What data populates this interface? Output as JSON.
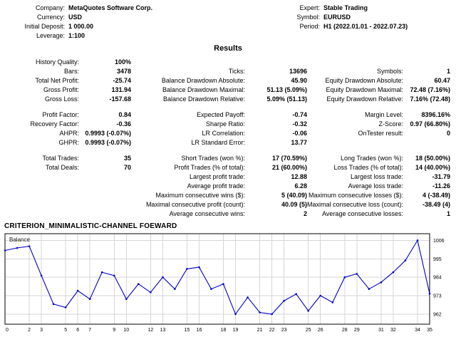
{
  "header": {
    "left": [
      {
        "label": "Company:",
        "value": "MetaQuotes Software Corp."
      },
      {
        "label": "Currency:",
        "value": "USD"
      },
      {
        "label": "Initial Deposit:",
        "value": "1 000.00"
      },
      {
        "label": "Leverage:",
        "value": "1:100"
      }
    ],
    "right": [
      {
        "label": "Expert:",
        "value": "Stable Trading"
      },
      {
        "label": "Symbol:",
        "value": "EURUSD"
      },
      {
        "label": "Period:",
        "value": "H1 (2022.01.01 - 2022.07.23)"
      }
    ]
  },
  "results_title": "Results",
  "stats": {
    "rows": [
      {
        "l1": "History Quality:",
        "v1": "100%",
        "l2": "",
        "v2": "",
        "l3": "",
        "v3": ""
      },
      {
        "l1": "Bars:",
        "v1": "3478",
        "l2": "Ticks:",
        "v2": "13696",
        "l3": "Symbols:",
        "v3": "1"
      },
      {
        "l1": "Total Net Profit:",
        "v1": "-25.74",
        "l2": "Balance Drawdown Absolute:",
        "v2": "45.90",
        "l3": "Equity Drawdown Absolute:",
        "v3": "60.47"
      },
      {
        "l1": "Gross Profit:",
        "v1": "131.94",
        "l2": "Balance Drawdown Maximal:",
        "v2": "51.13 (5.09%)",
        "l3": "Equity Drawdown Maximal:",
        "v3": "72.48 (7.16%)"
      },
      {
        "l1": "Gross Loss:",
        "v1": "-157.68",
        "l2": "Balance Drawdown Relative:",
        "v2": "5.09% (51.13)",
        "l3": "Equity Drawdown Relative:",
        "v3": "7.16% (72.48)"
      },
      {
        "spacer": true
      },
      {
        "l1": "Profit Factor:",
        "v1": "0.84",
        "l2": "Expected Payoff:",
        "v2": "-0.74",
        "l3": "Margin Level:",
        "v3": "8396.16%"
      },
      {
        "l1": "Recovery Factor:",
        "v1": "-0.36",
        "l2": "Sharpe Ratio:",
        "v2": "-0.32",
        "l3": "Z-Score:",
        "v3": "0.97 (66.80%)"
      },
      {
        "l1": "AHPR:",
        "v1": "0.9993 (-0.07%)",
        "l2": "LR Correlation:",
        "v2": "-0.06",
        "l3": "OnTester result:",
        "v3": "0"
      },
      {
        "l1": "GHPR:",
        "v1": "0.9993 (-0.07%)",
        "l2": "LR Standard Error:",
        "v2": "13.77",
        "l3": "",
        "v3": ""
      },
      {
        "spacer": true
      },
      {
        "l1": "Total Trades:",
        "v1": "35",
        "l2": "Short Trades (won %):",
        "v2": "17 (70.59%)",
        "l3": "Long Trades (won %):",
        "v3": "18 (50.00%)"
      },
      {
        "l1": "Total Deals:",
        "v1": "70",
        "l2": "Profit Trades (% of total):",
        "v2": "21 (60.00%)",
        "l3": "Loss Trades (% of total):",
        "v3": "14 (40.00%)"
      },
      {
        "l1": "",
        "v1": "",
        "l2": "Largest profit trade:",
        "v2": "12.88",
        "l3": "Largest loss trade:",
        "v3": "-31.79"
      },
      {
        "l1": "",
        "v1": "",
        "l2": "Average profit trade:",
        "v2": "6.28",
        "l3": "Average loss trade:",
        "v3": "-11.26"
      },
      {
        "l1": "",
        "v1": "",
        "l2": "Maximum consecutive wins ($):",
        "v2": "5 (40.09)",
        "l3": "Maximum consecutive losses ($):",
        "v3": "4 (-38.49)"
      },
      {
        "l1": "",
        "v1": "",
        "l2": "Maximal consecutive profit (count):",
        "v2": "40.09 (5)",
        "l3": "Maximal consecutive loss (count):",
        "v3": "-38.49 (4)"
      },
      {
        "l1": "",
        "v1": "",
        "l2": "Average consecutive wins:",
        "v2": "2",
        "l3": "Average consecutive losses:",
        "v3": "1"
      }
    ]
  },
  "criterion_title": "CRITERION_MINIMALISTIC-CHANNEL FOEWARD",
  "chart_data": {
    "type": "line",
    "title": "Balance",
    "legend_label": "Balance",
    "legend_position": "top-left-inside",
    "x": [
      0,
      1,
      2,
      3,
      4,
      5,
      6,
      7,
      8,
      9,
      10,
      11,
      12,
      13,
      14,
      15,
      16,
      17,
      18,
      19,
      20,
      21,
      22,
      23,
      24,
      25,
      26,
      27,
      28,
      29,
      30,
      31,
      32,
      33,
      34,
      35
    ],
    "values": [
      1000,
      1001.5,
      1002.5,
      985,
      968,
      966,
      976,
      971,
      987,
      985,
      971,
      980,
      975,
      984,
      977,
      989,
      990,
      977,
      980,
      962,
      972,
      963,
      962,
      970,
      974,
      964,
      973,
      969,
      984,
      986,
      977,
      981,
      987,
      994,
      1006,
      974.26
    ],
    "x_ticks": [
      0,
      2,
      3,
      5,
      6,
      7,
      9,
      10,
      12,
      13,
      15,
      16,
      18,
      19,
      21,
      22,
      23,
      25,
      26,
      28,
      29,
      31,
      32,
      34,
      35
    ],
    "y_ticks": [
      962,
      973,
      984,
      995,
      1006
    ],
    "ylim": [
      956,
      1010
    ],
    "xlim": [
      0,
      35
    ],
    "y_axis_side": "right",
    "grid": true,
    "line_color": "#0000c8",
    "grid_color": "#d6d6d6",
    "border_color": "#000000"
  }
}
